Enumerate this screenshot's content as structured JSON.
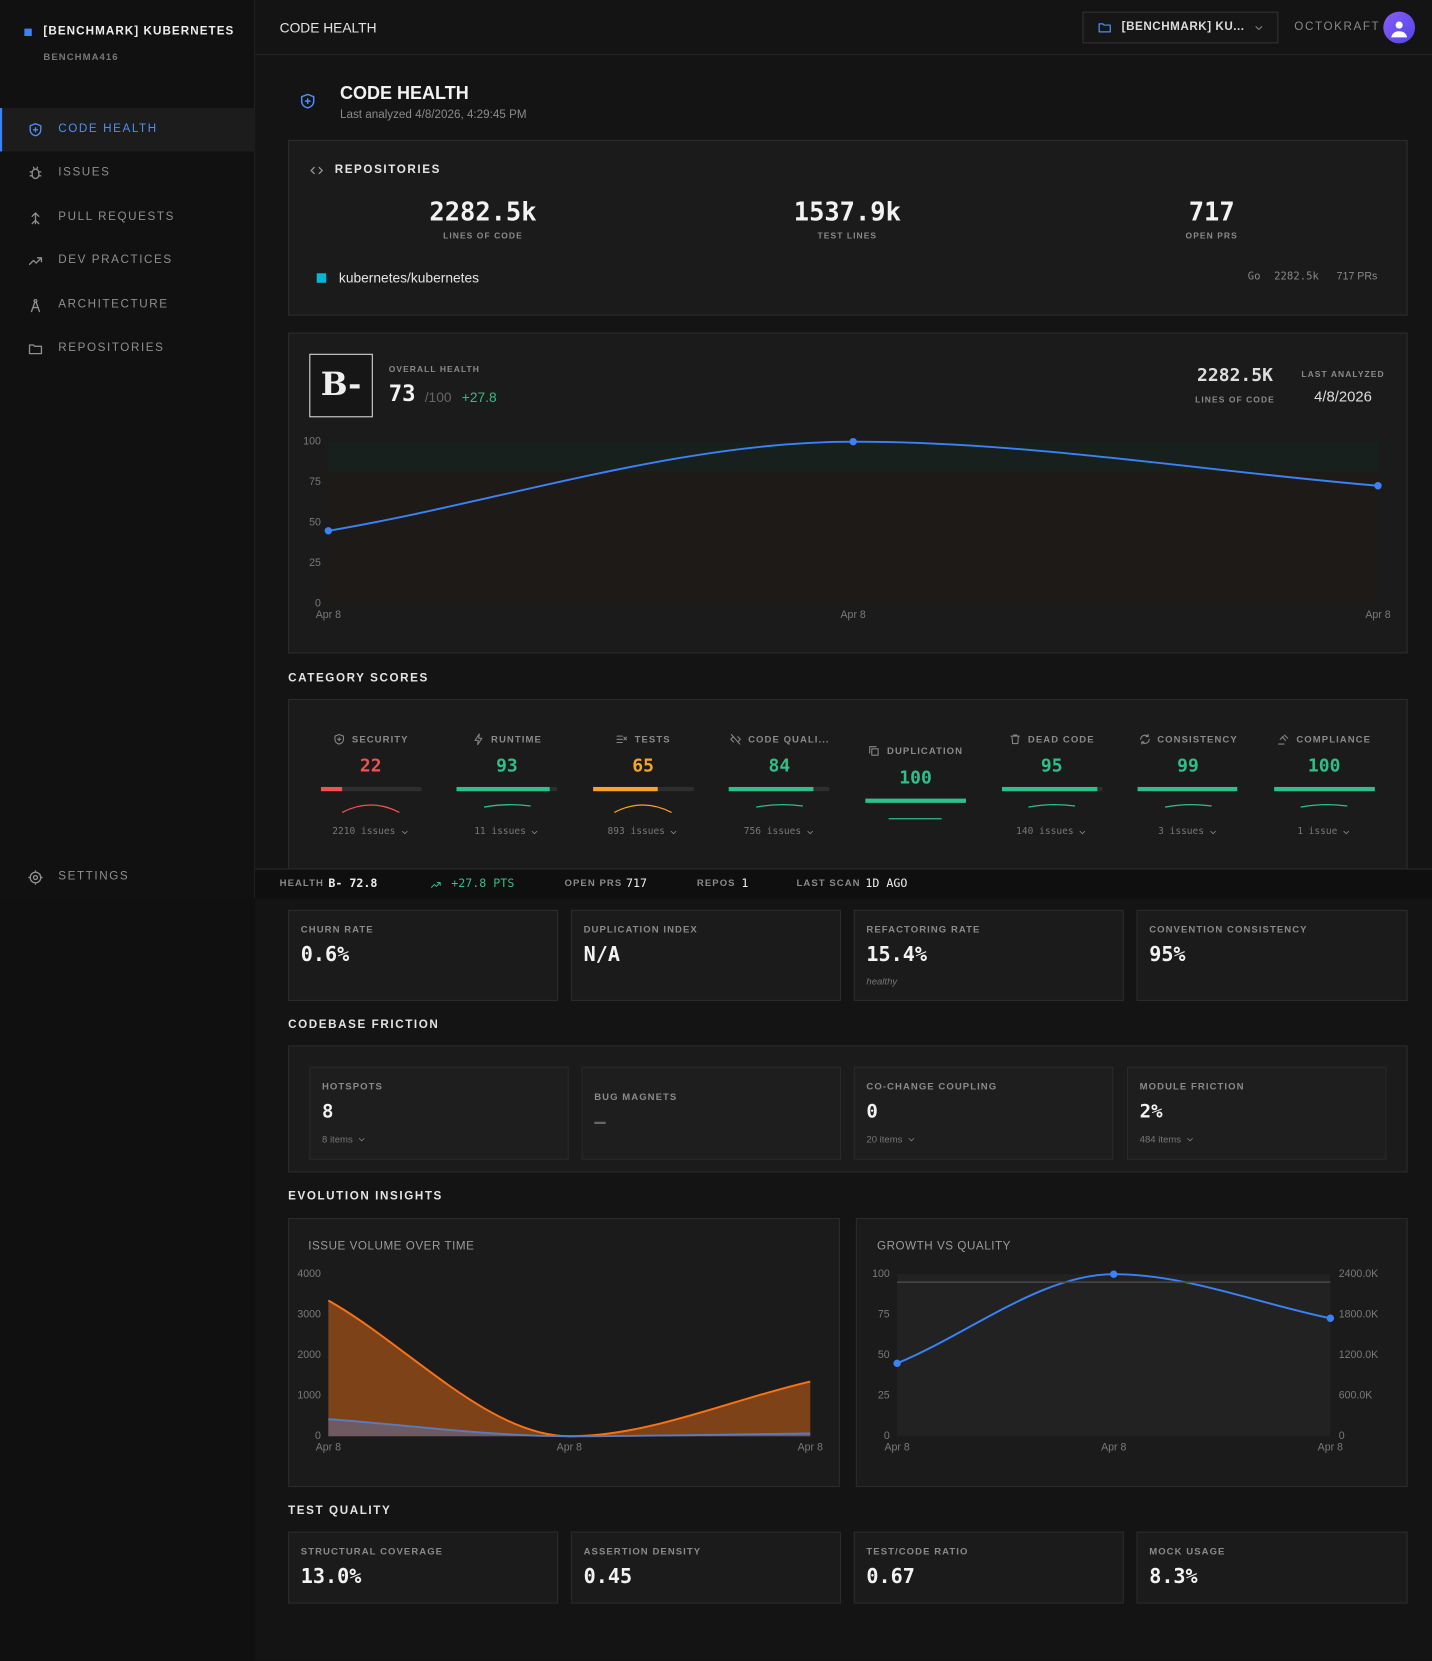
{
  "sidebar": {
    "workspace": "[BENCHMARK] KUBERNETES",
    "org": "BENCHMA416",
    "nav": [
      "CODE HEALTH",
      "ISSUES",
      "PULL REQUESTS",
      "DEV PRACTICES",
      "ARCHITECTURE",
      "REPOSITORIES"
    ],
    "settings": "SETTINGS"
  },
  "topbar": {
    "title": "CODE HEALTH",
    "project": "[BENCHMARK] KU...",
    "user": "OCTOKRAFT"
  },
  "header": {
    "title": "CODE HEALTH",
    "subtitle": "Last analyzed 4/8/2026, 4:29:45 PM"
  },
  "repositories": {
    "title": "REPOSITORIES",
    "stats": [
      {
        "value": "2282.5k",
        "label": "LINES OF CODE"
      },
      {
        "value": "1537.9k",
        "label": "TEST LINES"
      },
      {
        "value": 717,
        "label": "OPEN PRS"
      }
    ],
    "repo": {
      "name": "kubernetes/kubernetes",
      "language": "Go",
      "lines": "2282.5k",
      "prs": "717 PRs"
    }
  },
  "health": {
    "grade": "B-",
    "label": "OVERALL HEALTH",
    "score": 73,
    "max": "/100",
    "delta": "+27.8",
    "lines": "2282.5K",
    "lines_label": "LINES OF CODE",
    "analyzed_label": "LAST ANALYZED",
    "analyzed": "4/8/2026"
  },
  "category_scores": {
    "title": "CATEGORY SCORES",
    "items": [
      {
        "name": "SECURITY",
        "score": 22,
        "color": "#f05252",
        "issues": "2210 issues"
      },
      {
        "name": "RUNTIME",
        "score": 93,
        "color": "#2fbf8a",
        "issues": "11 issues"
      },
      {
        "name": "TESTS",
        "score": 65,
        "color": "#f5a524",
        "issues": "893 issues"
      },
      {
        "name": "CODE QUALI...",
        "score": 84,
        "color": "#2fbf8a",
        "issues": "756 issues"
      },
      {
        "name": "DUPLICATION",
        "score": 100,
        "color": "#2fbf8a"
      },
      {
        "name": "DEAD CODE",
        "score": 95,
        "color": "#2fbf8a",
        "issues": "140 issues"
      },
      {
        "name": "CONSISTENCY",
        "score": 99,
        "color": "#2fbf8a",
        "issues": "3 issues"
      },
      {
        "name": "COMPLIANCE",
        "score": 100,
        "color": "#2fbf8a",
        "issues": "1 issue"
      }
    ]
  },
  "status_bar": [
    {
      "label": "HEALTH",
      "value": "B- 72.8"
    },
    {
      "value": "+27.8 PTS"
    },
    {
      "label": "OPEN PRS",
      "value": 717
    },
    {
      "label": "REPOS",
      "value": 1
    },
    {
      "label": "LAST SCAN",
      "value": "1D AGO"
    }
  ],
  "metrics": [
    {
      "label": "CHURN RATE",
      "value": "0.6%"
    },
    {
      "label": "DUPLICATION INDEX",
      "value": "N/A"
    },
    {
      "label": "REFACTORING RATE",
      "value": "15.4%",
      "note": "healthy"
    },
    {
      "label": "CONVENTION CONSISTENCY",
      "value": "95%"
    }
  ],
  "friction": {
    "title": "CODEBASE FRICTION",
    "items": [
      {
        "label": "HOTSPOTS",
        "value": 8,
        "detail": "8 items"
      },
      {
        "label": "BUG MAGNETS",
        "value": "—"
      },
      {
        "label": "CO-CHANGE COUPLING",
        "value": 0,
        "detail": "20 items"
      },
      {
        "label": "MODULE FRICTION",
        "value": "2%",
        "detail": "484 items"
      }
    ]
  },
  "evolution": {
    "title": "EVOLUTION INSIGHTS"
  },
  "chart_data": [
    {
      "type": "line",
      "categories": [
        "Apr 8",
        "Apr 8",
        "Apr 8"
      ],
      "values": [
        45,
        100,
        72.8
      ],
      "color": "#3b82f6",
      "ylim": [
        0,
        100
      ],
      "yticks": [
        0,
        25,
        50,
        75,
        100
      ]
    },
    {
      "type": "area",
      "title": "ISSUE VOLUME OVER TIME",
      "categories": [
        "Apr 8",
        "Apr 8",
        "Apr 8"
      ],
      "series": [
        {
          "color": "#f97316",
          "values": [
            3350,
            0,
            1350
          ]
        },
        {
          "color": "#5a7bbd",
          "values": [
            420,
            0,
            70
          ]
        }
      ],
      "ylim": [
        0,
        4000
      ],
      "yticks": [
        0,
        1000,
        2000,
        3000,
        4000
      ]
    },
    {
      "type": "line",
      "title": "GROWTH VS QUALITY",
      "categories": [
        "Apr 8",
        "Apr 8",
        "Apr 8"
      ],
      "series": [
        {
          "color": "#3b82f6",
          "values": [
            45,
            100,
            72.8
          ]
        },
        {
          "color": "#4a4a4a",
          "values": [
            2282500,
            2282500,
            2282500
          ],
          "axis": "y2"
        }
      ],
      "ylim": [
        0,
        100
      ],
      "yticks": [
        0,
        25,
        50,
        75,
        100
      ],
      "y2lim": [
        0,
        2400000
      ],
      "y2ticks": [
        0,
        {
          "value": 600000,
          "label": "600.0K"
        },
        {
          "value": 1200000,
          "label": "1200.0K"
        },
        {
          "value": 1800000,
          "label": "1800.0K"
        },
        {
          "value": 2400000,
          "label": "2400.0K"
        }
      ]
    }
  ],
  "test_quality": {
    "title": "TEST QUALITY",
    "items": [
      {
        "label": "STRUCTURAL COVERAGE",
        "value": "13.0%"
      },
      {
        "label": "ASSERTION DENSITY",
        "value": 0.45
      },
      {
        "label": "TEST/CODE RATIO",
        "value": 0.67
      },
      {
        "label": "MOCK USAGE",
        "value": "8.3%"
      }
    ]
  }
}
